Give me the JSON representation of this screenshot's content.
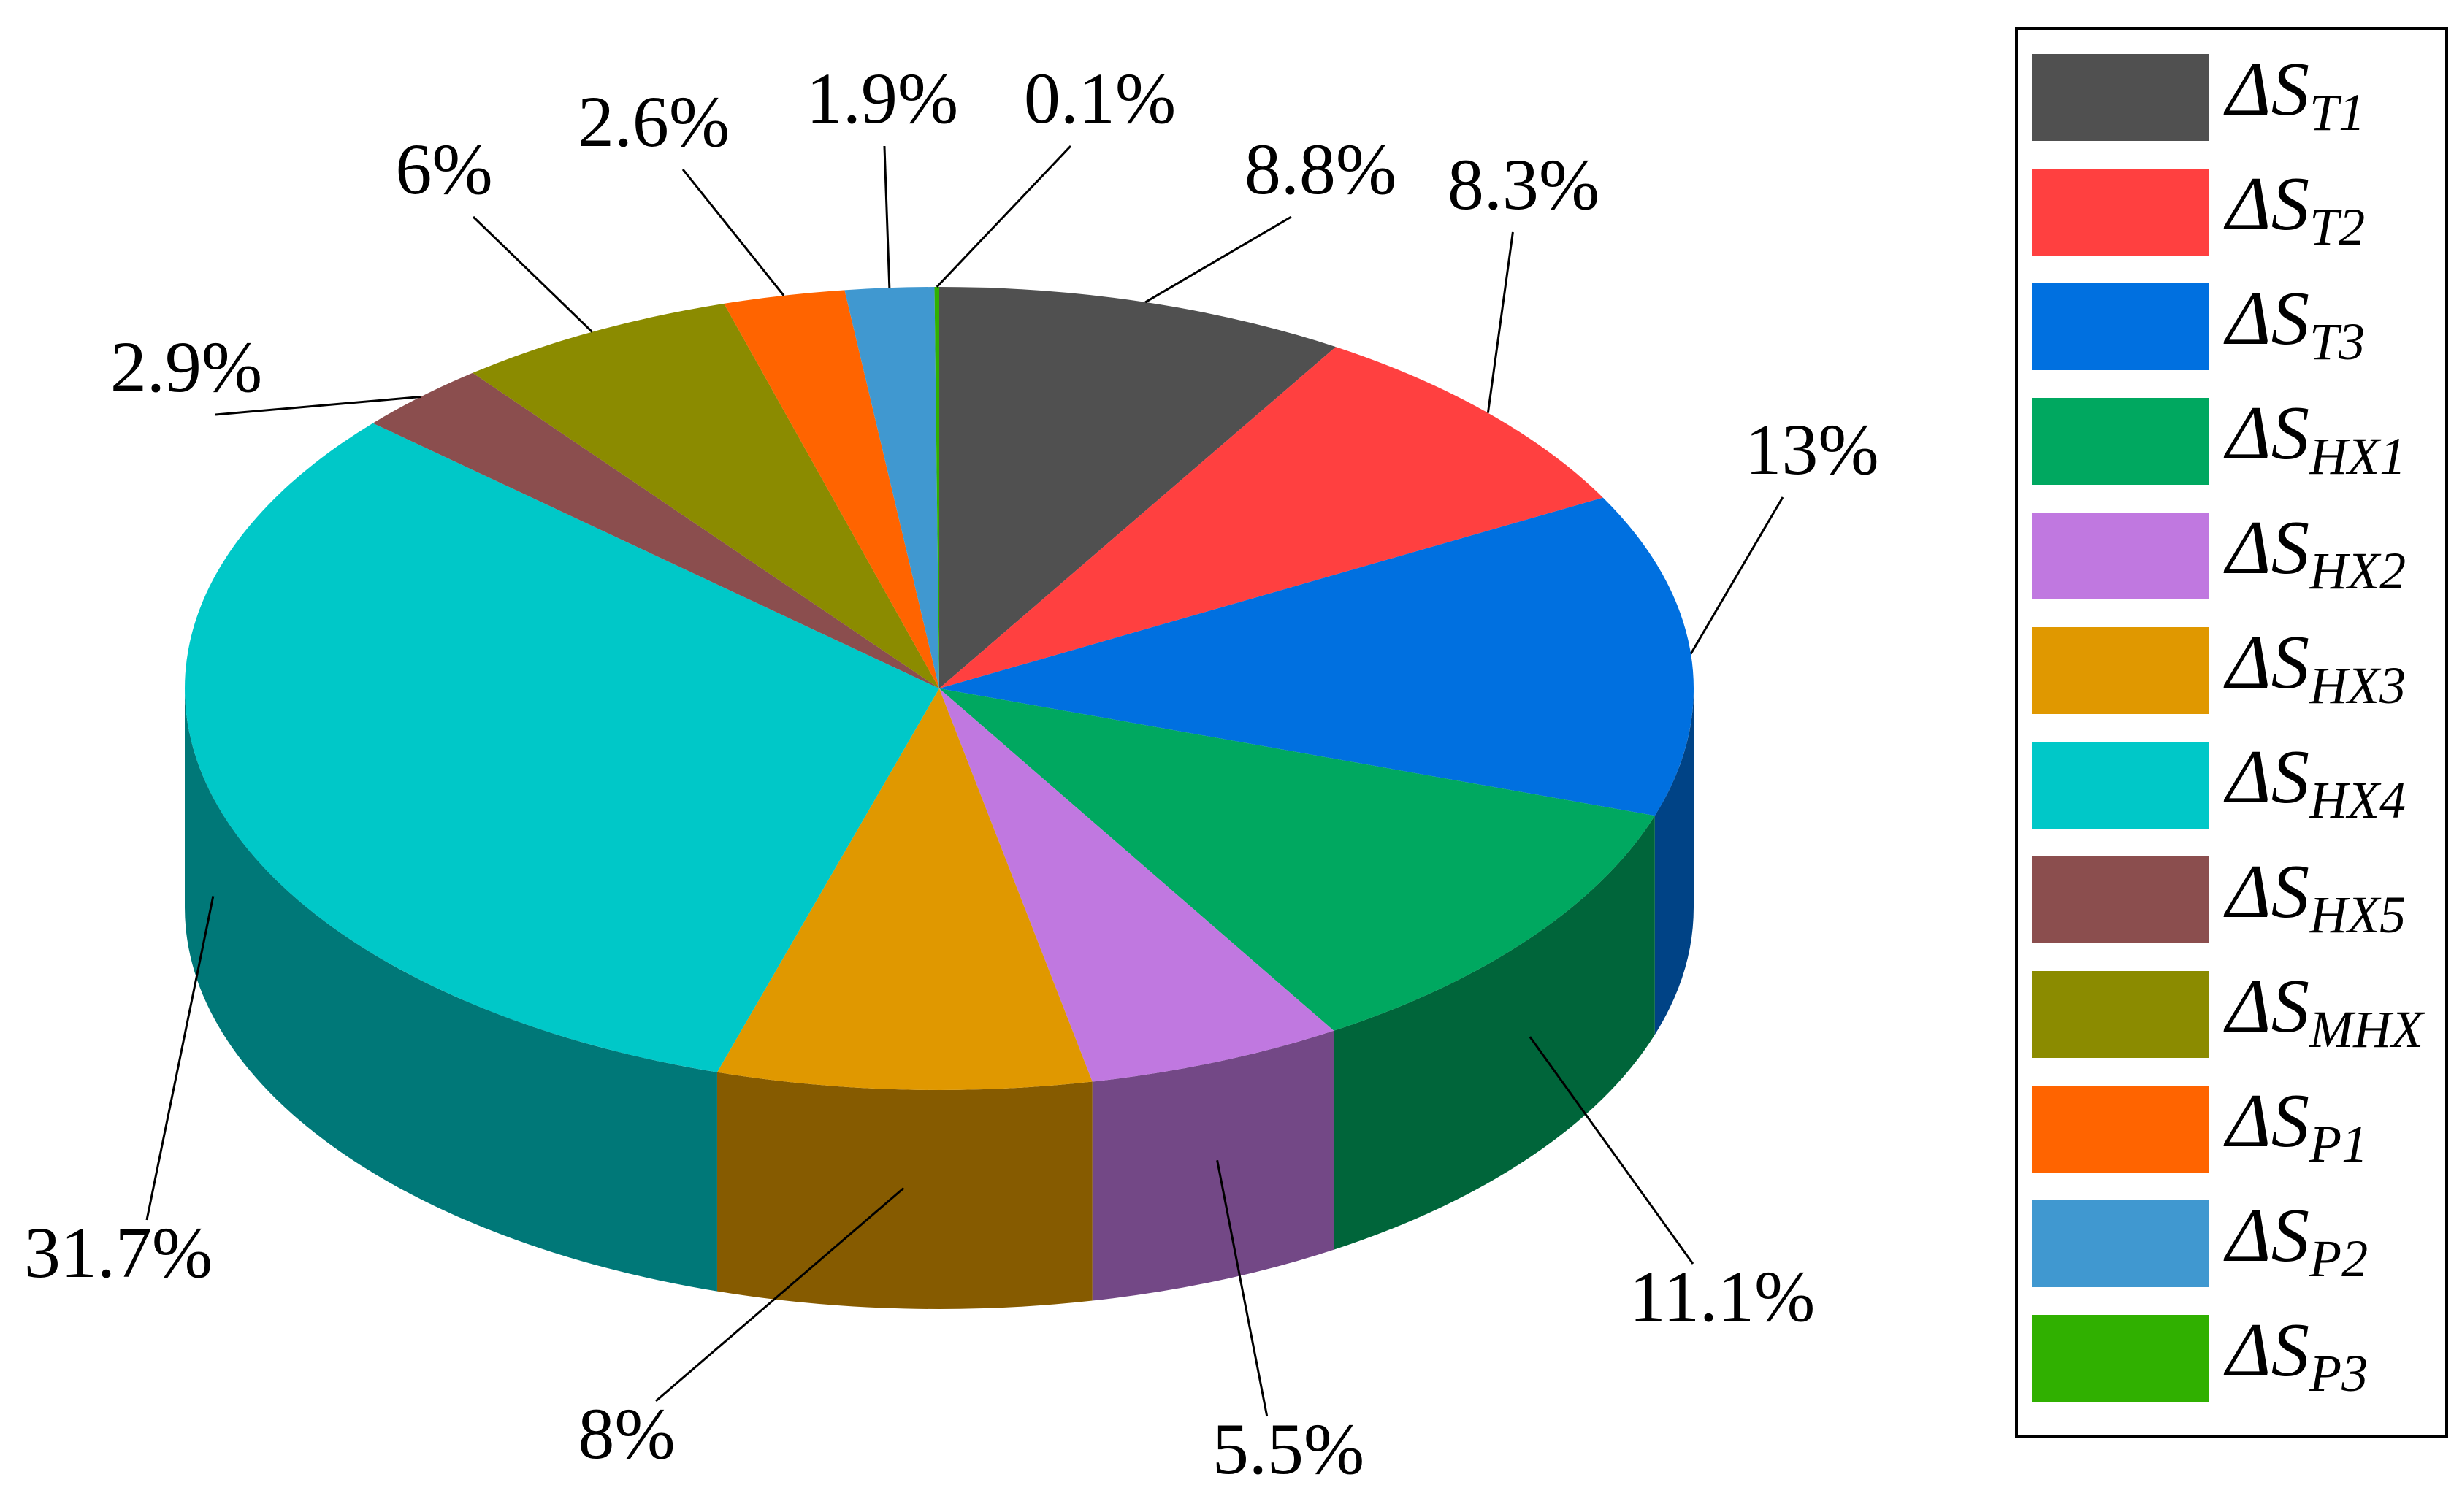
{
  "chart_data": {
    "type": "pie3d",
    "categories": [
      "ΔST1",
      "ΔST2",
      "ΔST3",
      "ΔSHX1",
      "ΔSHX2",
      "ΔSHX3",
      "ΔSHX4",
      "ΔSHX5",
      "ΔSMHX",
      "ΔSP1",
      "ΔSP2",
      "ΔSP3"
    ],
    "values": [
      8.8,
      8.3,
      13,
      11.1,
      5.5,
      8,
      31.7,
      2.9,
      6,
      2.6,
      1.9,
      0.1
    ],
    "value_labels": [
      "8.8%",
      "8.3%",
      "13%",
      "11.1%",
      "5.5%",
      "8%",
      "31.7%",
      "2.9%",
      "6%",
      "2.6%",
      "1.9%",
      "0.1%"
    ],
    "colors": [
      "#505050",
      "#ff4040",
      "#0070e0",
      "#00a860",
      "#c078e0",
      "#e09800",
      "#00c8c8",
      "#8b4e4e",
      "#8b8b00",
      "#ff6400",
      "#4098d0",
      "#30b000"
    ],
    "legend": "right"
  }
}
